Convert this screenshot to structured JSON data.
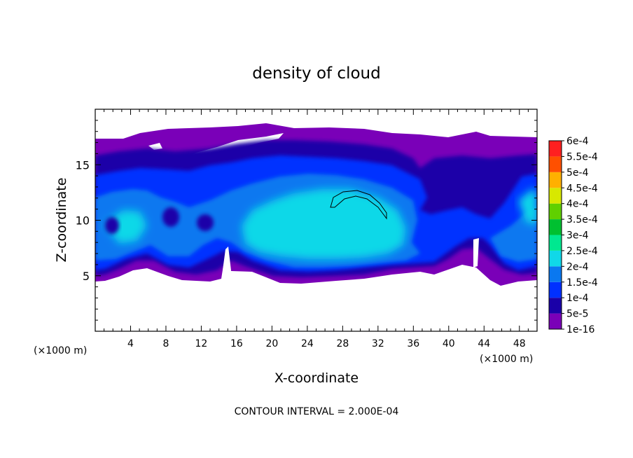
{
  "chart_data": {
    "type": "heatmap",
    "title": "density of cloud",
    "xlabel": "X-coordinate",
    "ylabel": "Z-coordinate",
    "x_unit": "(×1000 m)",
    "z_unit": "(×1000 m)",
    "xlim": [
      0,
      50
    ],
    "ylim": [
      0,
      20
    ],
    "x_ticks": [
      4,
      8,
      12,
      16,
      20,
      24,
      28,
      32,
      36,
      40,
      44,
      48
    ],
    "y_ticks": [
      5,
      10,
      15
    ],
    "footer": "CONTOUR INTERVAL = 2.000E-04",
    "colorbar": {
      "labels": [
        "1e-16",
        "5e-5",
        "1e-4",
        "1.5e-4",
        "2e-4",
        "2.5e-4",
        "3e-4",
        "3.5e-4",
        "4e-4",
        "4.5e-4",
        "5e-4",
        "5.5e-4",
        "6e-4"
      ],
      "colors": [
        "#7a00b8",
        "#1a00a8",
        "#0030ff",
        "#0a78f0",
        "#10d8e8",
        "#00e890",
        "#00c030",
        "#60d000",
        "#d8e800",
        "#ffb000",
        "#ff5000",
        "#ff2020",
        "#ff9090"
      ]
    },
    "cloud_layer": {
      "z_range": [
        4.5,
        17.3
      ],
      "core_value": "2e-4",
      "core_x_range": [
        20,
        36
      ],
      "core_z_range": [
        7,
        13
      ]
    },
    "contour": {
      "level": "2e-4",
      "x_range": [
        26.5,
        33
      ]
    }
  }
}
